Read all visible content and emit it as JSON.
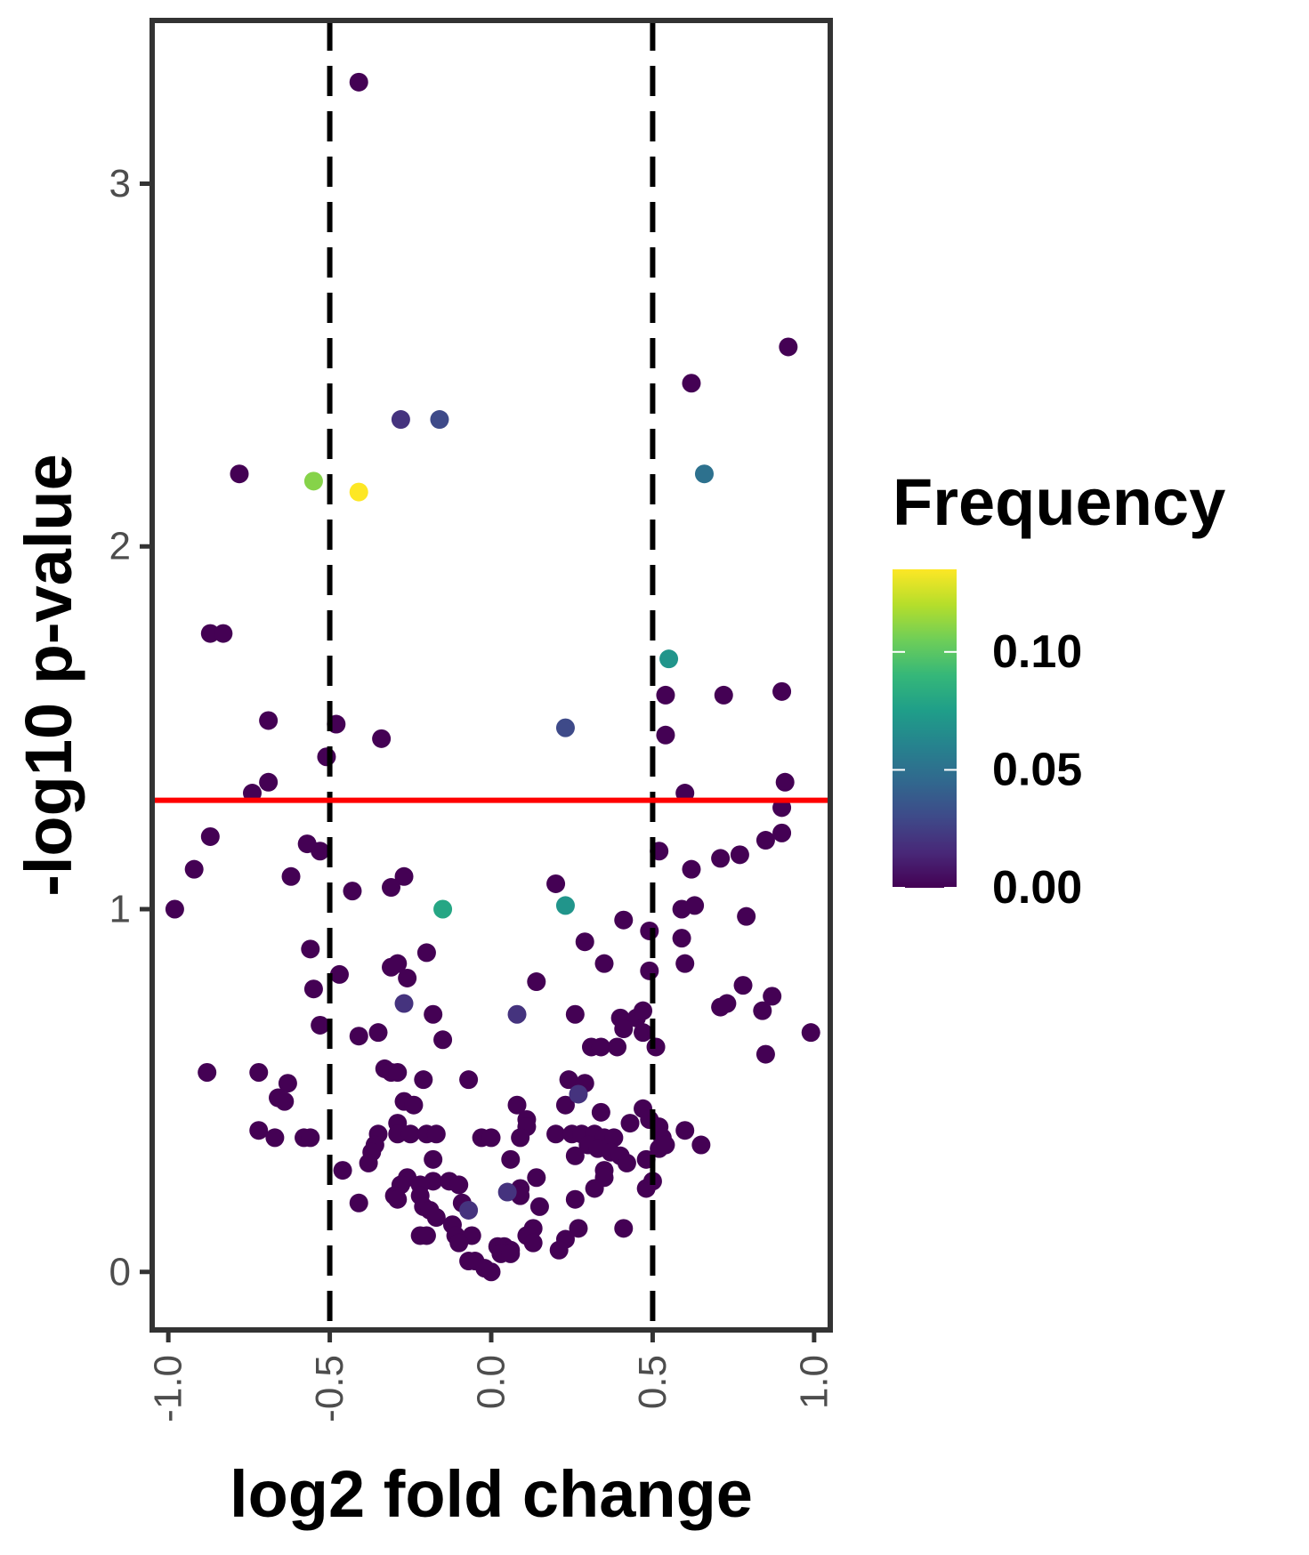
{
  "chart_data": {
    "type": "scatter",
    "title": "",
    "xlabel": "log2 fold change",
    "ylabel": "-log10 p-value",
    "xlim": [
      -1.05,
      1.05
    ],
    "ylim": [
      -0.16,
      3.45
    ],
    "x_ticks": [
      -1.0,
      -0.5,
      0.0,
      0.5,
      1.0
    ],
    "x_tick_labels": [
      "-1.0",
      "-0.5",
      "0.0",
      "0.5",
      "1.0"
    ],
    "y_ticks": [
      0,
      1,
      2,
      3
    ],
    "y_tick_labels": [
      "0",
      "1",
      "2",
      "3"
    ],
    "grid": false,
    "vlines": [
      {
        "x": -0.5,
        "style": "dashed",
        "color": "#000000"
      },
      {
        "x": 0.5,
        "style": "dashed",
        "color": "#000000"
      }
    ],
    "hlines": [
      {
        "y": 1.3,
        "style": "solid",
        "color": "#ff0000"
      }
    ],
    "legend": {
      "title": "Frequency",
      "placement": "right",
      "type": "colorbar",
      "range": [
        0,
        0.135
      ],
      "ticks": [
        0.0,
        0.05,
        0.1
      ],
      "tick_labels": [
        "0.00",
        "0.05",
        "0.10"
      ],
      "colors": [
        "#440154",
        "#482878",
        "#3e4a89",
        "#31688e",
        "#26828e",
        "#1f9e89",
        "#35b779",
        "#6ece58",
        "#b5de2b",
        "#fde725"
      ]
    },
    "points": [
      {
        "x": -0.41,
        "y": 3.28,
        "f": 0.0
      },
      {
        "x": 0.92,
        "y": 2.55,
        "f": 0.0
      },
      {
        "x": 0.62,
        "y": 2.45,
        "f": 0.0
      },
      {
        "x": -0.28,
        "y": 2.35,
        "f": 0.02
      },
      {
        "x": -0.16,
        "y": 2.35,
        "f": 0.03
      },
      {
        "x": -0.78,
        "y": 2.2,
        "f": 0.0
      },
      {
        "x": -0.55,
        "y": 2.18,
        "f": 0.11
      },
      {
        "x": -0.41,
        "y": 2.15,
        "f": 0.135
      },
      {
        "x": 0.66,
        "y": 2.2,
        "f": 0.05
      },
      {
        "x": -0.87,
        "y": 1.76,
        "f": 0.0
      },
      {
        "x": -0.83,
        "y": 1.76,
        "f": 0.0
      },
      {
        "x": 0.55,
        "y": 1.69,
        "f": 0.07
      },
      {
        "x": 0.54,
        "y": 1.59,
        "f": 0.0
      },
      {
        "x": 0.72,
        "y": 1.59,
        "f": 0.0
      },
      {
        "x": 0.9,
        "y": 1.6,
        "f": 0.0
      },
      {
        "x": -0.69,
        "y": 1.52,
        "f": 0.0
      },
      {
        "x": -0.48,
        "y": 1.51,
        "f": 0.0
      },
      {
        "x": -0.34,
        "y": 1.47,
        "f": 0.0
      },
      {
        "x": 0.23,
        "y": 1.5,
        "f": 0.03
      },
      {
        "x": 0.54,
        "y": 1.48,
        "f": 0.0
      },
      {
        "x": -0.51,
        "y": 1.42,
        "f": 0.0
      },
      {
        "x": -0.69,
        "y": 1.35,
        "f": 0.0
      },
      {
        "x": -0.74,
        "y": 1.32,
        "f": 0.0
      },
      {
        "x": 0.6,
        "y": 1.32,
        "f": 0.0
      },
      {
        "x": 0.91,
        "y": 1.35,
        "f": 0.0
      },
      {
        "x": 0.9,
        "y": 1.28,
        "f": 0.0
      },
      {
        "x": -0.87,
        "y": 1.2,
        "f": 0.0
      },
      {
        "x": -0.57,
        "y": 1.18,
        "f": 0.0
      },
      {
        "x": -0.53,
        "y": 1.16,
        "f": 0.0
      },
      {
        "x": 0.52,
        "y": 1.16,
        "f": 0.0
      },
      {
        "x": 0.85,
        "y": 1.19,
        "f": 0.0
      },
      {
        "x": 0.9,
        "y": 1.21,
        "f": 0.0
      },
      {
        "x": -0.92,
        "y": 1.11,
        "f": 0.0
      },
      {
        "x": -0.62,
        "y": 1.09,
        "f": 0.0
      },
      {
        "x": 0.62,
        "y": 1.11,
        "f": 0.0
      },
      {
        "x": 0.71,
        "y": 1.14,
        "f": 0.0
      },
      {
        "x": 0.77,
        "y": 1.15,
        "f": 0.0
      },
      {
        "x": -0.98,
        "y": 1.0,
        "f": 0.0
      },
      {
        "x": -0.43,
        "y": 1.05,
        "f": 0.0
      },
      {
        "x": -0.31,
        "y": 1.06,
        "f": 0.0
      },
      {
        "x": -0.27,
        "y": 1.09,
        "f": 0.0
      },
      {
        "x": -0.15,
        "y": 1.0,
        "f": 0.08
      },
      {
        "x": 0.2,
        "y": 1.07,
        "f": 0.0
      },
      {
        "x": 0.23,
        "y": 1.01,
        "f": 0.07
      },
      {
        "x": 0.59,
        "y": 1.0,
        "f": 0.0
      },
      {
        "x": 0.63,
        "y": 1.01,
        "f": 0.0
      },
      {
        "x": 0.79,
        "y": 0.98,
        "f": 0.0
      },
      {
        "x": 0.41,
        "y": 0.97,
        "f": 0.0
      },
      {
        "x": 0.49,
        "y": 0.94,
        "f": 0.0
      },
      {
        "x": 0.59,
        "y": 0.92,
        "f": 0.0
      },
      {
        "x": -0.56,
        "y": 0.89,
        "f": 0.0
      },
      {
        "x": -0.2,
        "y": 0.88,
        "f": 0.0
      },
      {
        "x": 0.29,
        "y": 0.91,
        "f": 0.0
      },
      {
        "x": -0.31,
        "y": 0.84,
        "f": 0.0
      },
      {
        "x": -0.29,
        "y": 0.85,
        "f": 0.0
      },
      {
        "x": 0.35,
        "y": 0.85,
        "f": 0.0
      },
      {
        "x": 0.6,
        "y": 0.85,
        "f": 0.0
      },
      {
        "x": -0.47,
        "y": 0.82,
        "f": 0.0
      },
      {
        "x": -0.26,
        "y": 0.81,
        "f": 0.0
      },
      {
        "x": 0.14,
        "y": 0.8,
        "f": 0.0
      },
      {
        "x": 0.49,
        "y": 0.83,
        "f": 0.0
      },
      {
        "x": -0.55,
        "y": 0.78,
        "f": 0.0
      },
      {
        "x": 0.78,
        "y": 0.79,
        "f": 0.0
      },
      {
        "x": 0.87,
        "y": 0.76,
        "f": 0.0
      },
      {
        "x": -0.27,
        "y": 0.74,
        "f": 0.02
      },
      {
        "x": 0.08,
        "y": 0.71,
        "f": 0.02
      },
      {
        "x": 0.71,
        "y": 0.73,
        "f": 0.0
      },
      {
        "x": 0.73,
        "y": 0.74,
        "f": 0.0
      },
      {
        "x": 0.84,
        "y": 0.72,
        "f": 0.0
      },
      {
        "x": -0.18,
        "y": 0.71,
        "f": 0.0
      },
      {
        "x": 0.26,
        "y": 0.71,
        "f": 0.0
      },
      {
        "x": 0.4,
        "y": 0.7,
        "f": 0.0
      },
      {
        "x": 0.45,
        "y": 0.7,
        "f": 0.0
      },
      {
        "x": 0.47,
        "y": 0.72,
        "f": 0.0
      },
      {
        "x": -0.53,
        "y": 0.68,
        "f": 0.0
      },
      {
        "x": 0.41,
        "y": 0.67,
        "f": 0.0
      },
      {
        "x": 0.47,
        "y": 0.66,
        "f": 0.0
      },
      {
        "x": 0.99,
        "y": 0.66,
        "f": 0.0
      },
      {
        "x": -0.41,
        "y": 0.65,
        "f": 0.0
      },
      {
        "x": -0.35,
        "y": 0.66,
        "f": 0.0
      },
      {
        "x": -0.15,
        "y": 0.64,
        "f": 0.0
      },
      {
        "x": 0.31,
        "y": 0.62,
        "f": 0.0
      },
      {
        "x": 0.34,
        "y": 0.62,
        "f": 0.0
      },
      {
        "x": 0.39,
        "y": 0.62,
        "f": 0.0
      },
      {
        "x": 0.51,
        "y": 0.62,
        "f": 0.0
      },
      {
        "x": 0.85,
        "y": 0.6,
        "f": 0.0
      },
      {
        "x": -0.88,
        "y": 0.55,
        "f": 0.0
      },
      {
        "x": -0.72,
        "y": 0.55,
        "f": 0.0
      },
      {
        "x": -0.33,
        "y": 0.56,
        "f": 0.0
      },
      {
        "x": -0.31,
        "y": 0.55,
        "f": 0.0
      },
      {
        "x": -0.29,
        "y": 0.55,
        "f": 0.0
      },
      {
        "x": -0.21,
        "y": 0.53,
        "f": 0.0
      },
      {
        "x": -0.07,
        "y": 0.53,
        "f": 0.0
      },
      {
        "x": 0.24,
        "y": 0.53,
        "f": 0.0
      },
      {
        "x": 0.29,
        "y": 0.52,
        "f": 0.0
      },
      {
        "x": -0.63,
        "y": 0.52,
        "f": 0.0
      },
      {
        "x": -0.66,
        "y": 0.48,
        "f": 0.0
      },
      {
        "x": -0.64,
        "y": 0.47,
        "f": 0.0
      },
      {
        "x": -0.27,
        "y": 0.47,
        "f": 0.0
      },
      {
        "x": 0.27,
        "y": 0.49,
        "f": 0.02
      },
      {
        "x": 0.23,
        "y": 0.46,
        "f": 0.0
      },
      {
        "x": 0.08,
        "y": 0.46,
        "f": 0.0
      },
      {
        "x": -0.24,
        "y": 0.46,
        "f": 0.0
      },
      {
        "x": 0.34,
        "y": 0.44,
        "f": 0.0
      },
      {
        "x": 0.47,
        "y": 0.45,
        "f": 0.0
      },
      {
        "x": 0.11,
        "y": 0.42,
        "f": 0.0
      },
      {
        "x": 0.11,
        "y": 0.4,
        "f": 0.0
      },
      {
        "x": -0.29,
        "y": 0.41,
        "f": 0.0
      },
      {
        "x": 0.43,
        "y": 0.41,
        "f": 0.0
      },
      {
        "x": 0.49,
        "y": 0.42,
        "f": 0.0
      },
      {
        "x": 0.52,
        "y": 0.4,
        "f": 0.0
      },
      {
        "x": -0.72,
        "y": 0.39,
        "f": 0.0
      },
      {
        "x": -0.58,
        "y": 0.37,
        "f": 0.0
      },
      {
        "x": -0.56,
        "y": 0.37,
        "f": 0.0
      },
      {
        "x": -0.67,
        "y": 0.37,
        "f": 0.0
      },
      {
        "x": -0.35,
        "y": 0.38,
        "f": 0.0
      },
      {
        "x": -0.29,
        "y": 0.38,
        "f": 0.0
      },
      {
        "x": -0.25,
        "y": 0.38,
        "f": 0.0
      },
      {
        "x": -0.2,
        "y": 0.38,
        "f": 0.0
      },
      {
        "x": -0.17,
        "y": 0.38,
        "f": 0.0
      },
      {
        "x": -0.03,
        "y": 0.37,
        "f": 0.0
      },
      {
        "x": 0.0,
        "y": 0.37,
        "f": 0.0
      },
      {
        "x": 0.09,
        "y": 0.37,
        "f": 0.0
      },
      {
        "x": 0.2,
        "y": 0.38,
        "f": 0.0
      },
      {
        "x": 0.25,
        "y": 0.38,
        "f": 0.0
      },
      {
        "x": 0.28,
        "y": 0.38,
        "f": 0.0
      },
      {
        "x": 0.32,
        "y": 0.38,
        "f": 0.0
      },
      {
        "x": 0.35,
        "y": 0.37,
        "f": 0.0
      },
      {
        "x": 0.38,
        "y": 0.37,
        "f": 0.0
      },
      {
        "x": 0.53,
        "y": 0.37,
        "f": 0.0
      },
      {
        "x": 0.6,
        "y": 0.39,
        "f": 0.0
      },
      {
        "x": -0.36,
        "y": 0.35,
        "f": 0.0
      },
      {
        "x": 0.3,
        "y": 0.35,
        "f": 0.0
      },
      {
        "x": 0.33,
        "y": 0.34,
        "f": 0.0
      },
      {
        "x": 0.37,
        "y": 0.33,
        "f": 0.0
      },
      {
        "x": 0.52,
        "y": 0.34,
        "f": 0.0
      },
      {
        "x": 0.54,
        "y": 0.35,
        "f": 0.0
      },
      {
        "x": 0.65,
        "y": 0.35,
        "f": 0.0
      },
      {
        "x": -0.37,
        "y": 0.33,
        "f": 0.0
      },
      {
        "x": -0.18,
        "y": 0.31,
        "f": 0.0
      },
      {
        "x": 0.06,
        "y": 0.31,
        "f": 0.0
      },
      {
        "x": 0.26,
        "y": 0.32,
        "f": 0.0
      },
      {
        "x": 0.4,
        "y": 0.32,
        "f": 0.0
      },
      {
        "x": 0.48,
        "y": 0.31,
        "f": 0.0
      },
      {
        "x": -0.38,
        "y": 0.3,
        "f": 0.0
      },
      {
        "x": 0.42,
        "y": 0.3,
        "f": 0.0
      },
      {
        "x": -0.46,
        "y": 0.28,
        "f": 0.0
      },
      {
        "x": 0.35,
        "y": 0.28,
        "f": 0.0
      },
      {
        "x": 0.35,
        "y": 0.26,
        "f": 0.0
      },
      {
        "x": 0.14,
        "y": 0.26,
        "f": 0.0
      },
      {
        "x": -0.26,
        "y": 0.26,
        "f": 0.0
      },
      {
        "x": -0.18,
        "y": 0.25,
        "f": 0.0
      },
      {
        "x": -0.13,
        "y": 0.25,
        "f": 0.0
      },
      {
        "x": -0.1,
        "y": 0.24,
        "f": 0.0
      },
      {
        "x": -0.28,
        "y": 0.24,
        "f": 0.0
      },
      {
        "x": -0.22,
        "y": 0.24,
        "f": 0.0
      },
      {
        "x": 0.09,
        "y": 0.23,
        "f": 0.0
      },
      {
        "x": 0.32,
        "y": 0.23,
        "f": 0.0
      },
      {
        "x": 0.48,
        "y": 0.23,
        "f": 0.0
      },
      {
        "x": 0.5,
        "y": 0.25,
        "f": 0.0
      },
      {
        "x": -0.3,
        "y": 0.21,
        "f": 0.0
      },
      {
        "x": -0.29,
        "y": 0.2,
        "f": 0.0
      },
      {
        "x": -0.22,
        "y": 0.21,
        "f": 0.0
      },
      {
        "x": 0.05,
        "y": 0.22,
        "f": 0.02
      },
      {
        "x": 0.09,
        "y": 0.21,
        "f": 0.0
      },
      {
        "x": 0.26,
        "y": 0.2,
        "f": 0.0
      },
      {
        "x": -0.41,
        "y": 0.19,
        "f": 0.0
      },
      {
        "x": -0.21,
        "y": 0.18,
        "f": 0.0
      },
      {
        "x": -0.19,
        "y": 0.17,
        "f": 0.0
      },
      {
        "x": -0.09,
        "y": 0.19,
        "f": 0.0
      },
      {
        "x": -0.07,
        "y": 0.17,
        "f": 0.02
      },
      {
        "x": 0.15,
        "y": 0.18,
        "f": 0.0
      },
      {
        "x": -0.17,
        "y": 0.15,
        "f": 0.0
      },
      {
        "x": -0.12,
        "y": 0.13,
        "f": 0.0
      },
      {
        "x": 0.13,
        "y": 0.12,
        "f": 0.0
      },
      {
        "x": 0.27,
        "y": 0.12,
        "f": 0.0
      },
      {
        "x": 0.41,
        "y": 0.12,
        "f": 0.0
      },
      {
        "x": -0.22,
        "y": 0.1,
        "f": 0.0
      },
      {
        "x": -0.2,
        "y": 0.1,
        "f": 0.0
      },
      {
        "x": -0.11,
        "y": 0.1,
        "f": 0.0
      },
      {
        "x": -0.06,
        "y": 0.1,
        "f": 0.0
      },
      {
        "x": 0.11,
        "y": 0.1,
        "f": 0.0
      },
      {
        "x": 0.13,
        "y": 0.08,
        "f": 0.0
      },
      {
        "x": 0.23,
        "y": 0.09,
        "f": 0.0
      },
      {
        "x": -0.1,
        "y": 0.08,
        "f": 0.0
      },
      {
        "x": 0.02,
        "y": 0.07,
        "f": 0.0
      },
      {
        "x": 0.04,
        "y": 0.07,
        "f": 0.0
      },
      {
        "x": 0.06,
        "y": 0.06,
        "f": 0.0
      },
      {
        "x": 0.21,
        "y": 0.06,
        "f": 0.0
      },
      {
        "x": 0.03,
        "y": 0.05,
        "f": 0.0
      },
      {
        "x": 0.06,
        "y": 0.05,
        "f": 0.0
      },
      {
        "x": -0.05,
        "y": 0.03,
        "f": 0.0
      },
      {
        "x": -0.07,
        "y": 0.03,
        "f": 0.0
      },
      {
        "x": -0.02,
        "y": 0.01,
        "f": 0.0
      },
      {
        "x": 0.0,
        "y": 0.0,
        "f": 0.0
      }
    ]
  }
}
